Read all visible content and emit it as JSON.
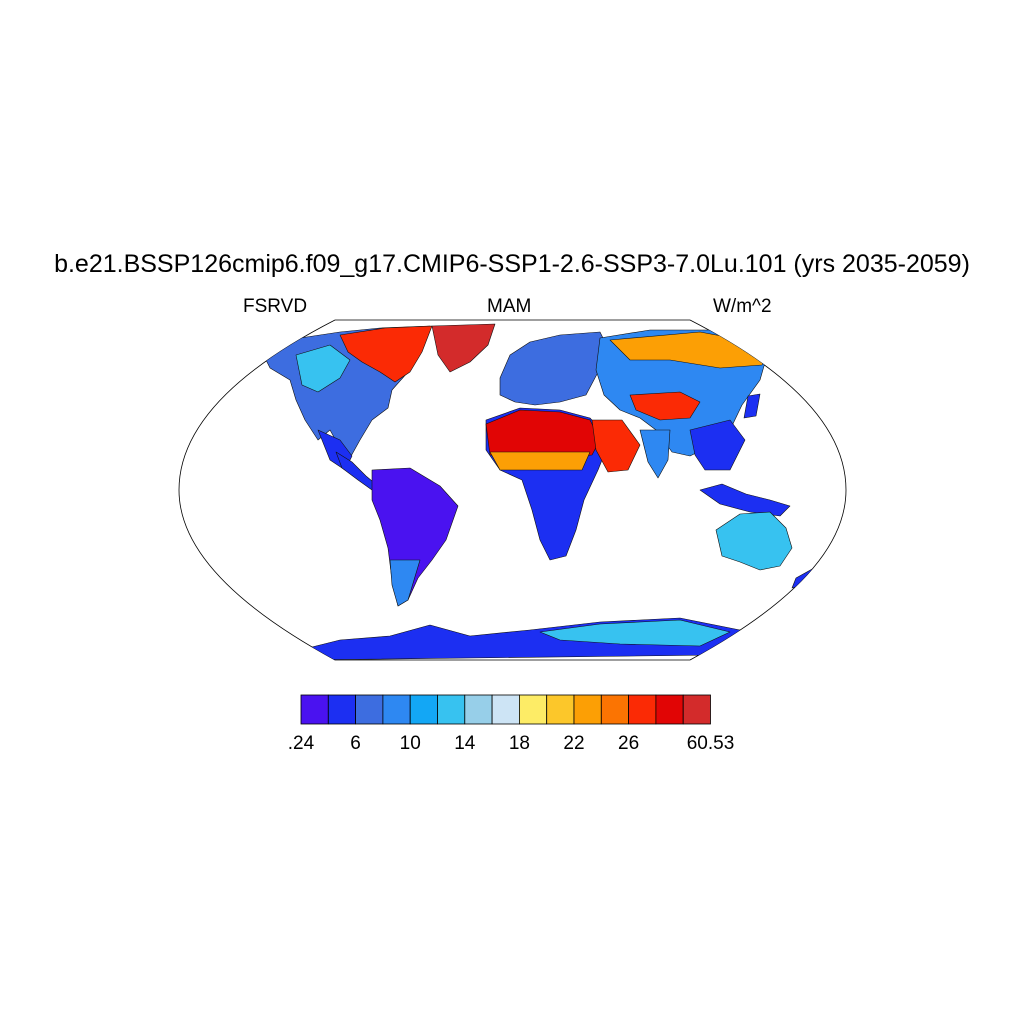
{
  "title": "b.e21.BSSP126cmip6.f09_g17.CMIP6-SSP1-2.6-SSP3-7.0Lu.101 (yrs 2035-2059)",
  "subtitle_left": "FSRVD",
  "subtitle_center": "MAM",
  "subtitle_right": "W/m^2",
  "map": {
    "projection": "robinson",
    "field": "FSRVD",
    "background": "#ffffff",
    "outline_color": "#000000"
  },
  "colorbar": {
    "colors": [
      "#4a12f0",
      "#1c2ff2",
      "#3d6de0",
      "#2e88f2",
      "#13a7f5",
      "#37c2f0",
      "#97cfe9",
      "#cde4f5",
      "#fdec66",
      "#fcc72a",
      "#fc9f05",
      "#fb7402",
      "#fb2a05",
      "#e10505",
      "#d32b2b"
    ],
    "labels": [
      {
        "after_box": 0,
        "text": ".24"
      },
      {
        "after_box": 2,
        "text": "6"
      },
      {
        "after_box": 4,
        "text": "10"
      },
      {
        "after_box": 6,
        "text": "14"
      },
      {
        "after_box": 8,
        "text": "18"
      },
      {
        "after_box": 10,
        "text": "22"
      },
      {
        "after_box": 12,
        "text": "26"
      },
      {
        "after_box": 15,
        "text": "60.53"
      }
    ]
  }
}
